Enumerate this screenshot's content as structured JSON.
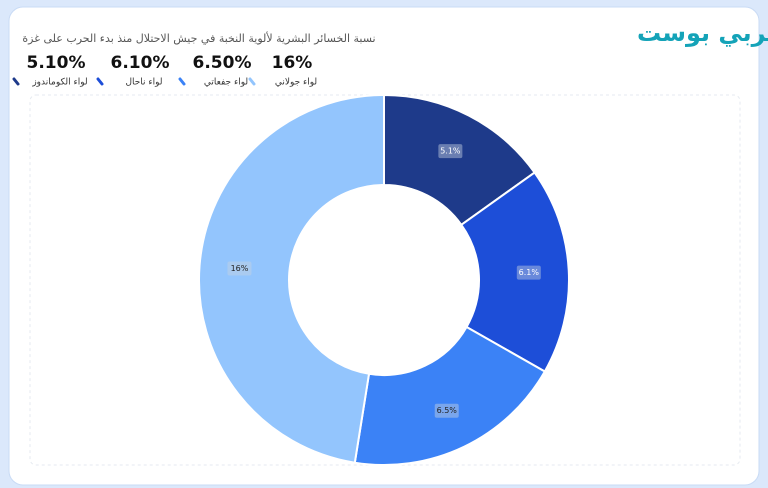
{
  "logo": "عربي بوست",
  "chart_data": {
    "type": "pie",
    "title": "نسبة الخسائر البشرية لألوية النخبة في جيش الاحتلال منذ بدء الحرب على غزة",
    "categories": [
      "لواء الكوماندوز",
      "لواء ناحال",
      "لواء جفعاتي",
      "لواء جولاني"
    ],
    "values": [
      5.1,
      6.1,
      6.5,
      16
    ],
    "value_labels": [
      "5.1%",
      "6.1%",
      "6.5%",
      "16%"
    ],
    "summary_labels": [
      "5.10%",
      "6.10%",
      "6.50%",
      "16%"
    ],
    "colors": [
      "#1e3a8a",
      "#1d4ed8",
      "#3b82f6",
      "#93c5fd"
    ],
    "donut": true
  }
}
